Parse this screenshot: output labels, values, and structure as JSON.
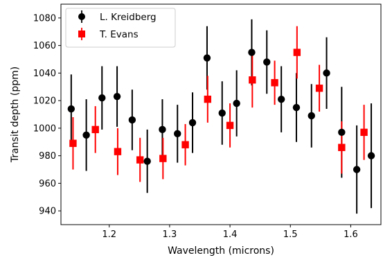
{
  "chart_data": {
    "type": "scatter",
    "xlabel": "Wavelength (microns)",
    "ylabel": "Transit depth (ppm)",
    "xlim": [
      1.12,
      1.65
    ],
    "ylim": [
      930,
      1090
    ],
    "xticks": [
      1.2,
      1.3,
      1.4,
      1.5,
      1.6
    ],
    "yticks": [
      940,
      960,
      980,
      1000,
      1020,
      1040,
      1060,
      1080
    ],
    "xtick_labels": [
      "1.2",
      "1.3",
      "1.4",
      "1.5",
      "1.6"
    ],
    "ytick_labels": [
      "940",
      "960",
      "980",
      "1000",
      "1020",
      "1040",
      "1060",
      "1080"
    ],
    "grid": false,
    "legend_position": "top-left",
    "series": [
      {
        "name": "L. Kreidberg",
        "color": "#000000",
        "marker": "circle",
        "points": [
          {
            "x": 1.137,
            "y": 1014,
            "err": 25
          },
          {
            "x": 1.162,
            "y": 995,
            "err": 26
          },
          {
            "x": 1.188,
            "y": 1022,
            "err": 23
          },
          {
            "x": 1.213,
            "y": 1023,
            "err": 22
          },
          {
            "x": 1.238,
            "y": 1006,
            "err": 22
          },
          {
            "x": 1.263,
            "y": 976,
            "err": 23
          },
          {
            "x": 1.288,
            "y": 999,
            "err": 22
          },
          {
            "x": 1.313,
            "y": 996,
            "err": 21
          },
          {
            "x": 1.338,
            "y": 1004,
            "err": 22
          },
          {
            "x": 1.362,
            "y": 1051,
            "err": 23
          },
          {
            "x": 1.387,
            "y": 1011,
            "err": 23
          },
          {
            "x": 1.411,
            "y": 1018,
            "err": 24
          },
          {
            "x": 1.436,
            "y": 1055,
            "err": 24
          },
          {
            "x": 1.461,
            "y": 1048,
            "err": 23
          },
          {
            "x": 1.485,
            "y": 1021,
            "err": 24
          },
          {
            "x": 1.51,
            "y": 1015,
            "err": 25
          },
          {
            "x": 1.535,
            "y": 1009,
            "err": 23
          },
          {
            "x": 1.56,
            "y": 1040,
            "err": 26
          },
          {
            "x": 1.585,
            "y": 997,
            "err": 33
          },
          {
            "x": 1.61,
            "y": 970,
            "err": 32
          },
          {
            "x": 1.634,
            "y": 980,
            "err": 38
          }
        ]
      },
      {
        "name": "T. Evans",
        "color": "#ff0000",
        "marker": "square",
        "points": [
          {
            "x": 1.14,
            "y": 989,
            "err": 19
          },
          {
            "x": 1.177,
            "y": 999,
            "err": 17
          },
          {
            "x": 1.214,
            "y": 983,
            "err": 17
          },
          {
            "x": 1.251,
            "y": 977,
            "err": 16
          },
          {
            "x": 1.289,
            "y": 978,
            "err": 15
          },
          {
            "x": 1.326,
            "y": 988,
            "err": 15
          },
          {
            "x": 1.363,
            "y": 1021,
            "err": 17
          },
          {
            "x": 1.4,
            "y": 1002,
            "err": 16
          },
          {
            "x": 1.437,
            "y": 1035,
            "err": 20
          },
          {
            "x": 1.474,
            "y": 1033,
            "err": 16
          },
          {
            "x": 1.511,
            "y": 1055,
            "err": 19
          },
          {
            "x": 1.548,
            "y": 1029,
            "err": 17
          },
          {
            "x": 1.585,
            "y": 986,
            "err": 19
          },
          {
            "x": 1.622,
            "y": 997,
            "err": 20
          }
        ]
      }
    ]
  }
}
